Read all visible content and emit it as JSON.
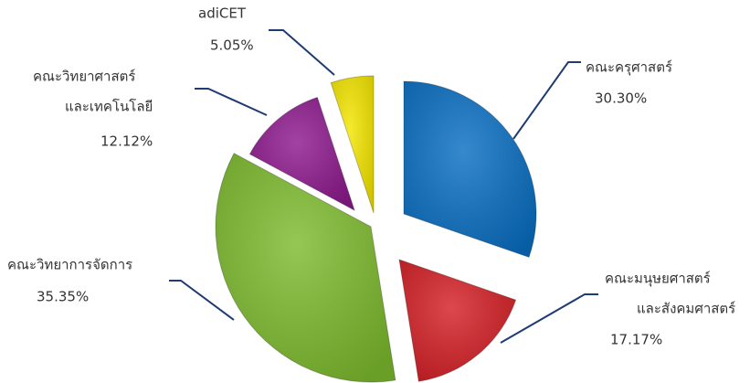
{
  "chart_data": {
    "type": "pie",
    "categories": [
      [
        "คณะครุศาสตร์"
      ],
      [
        "คณะมนุษยศาสตร์",
        "และสังคมศาสตร์"
      ],
      [
        "คณะวิทยาการจัดการ"
      ],
      [
        "คณะวิทยาศาสตร์",
        "และเทคโนโลยี"
      ],
      [
        "adiCET"
      ]
    ],
    "values": [
      30.3,
      17.17,
      35.35,
      12.12,
      5.05
    ],
    "value_labels": [
      "30.30%",
      "17.17%",
      "35.35%",
      "12.12%",
      "5.05%"
    ],
    "colors": [
      "#0a6fc2",
      "#d42026",
      "#7dbb2e",
      "#8e1a8e",
      "#f4e600"
    ]
  }
}
